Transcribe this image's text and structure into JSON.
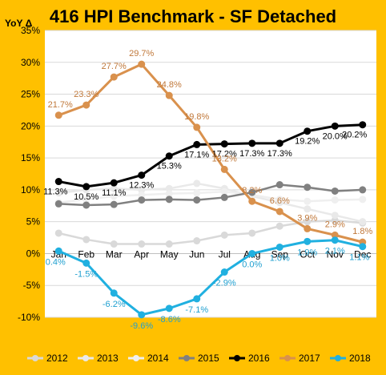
{
  "title": "416 HPI Benchmark - SF Detached",
  "y_axis_label": "YoY Δ",
  "chart_data": {
    "type": "line",
    "title": "416 HPI Benchmark - SF Detached",
    "ylabel": "YoY Δ",
    "ylim": [
      -10,
      35
    ],
    "y_ticks": [
      "-10%",
      "-5%",
      "0%",
      "5%",
      "10%",
      "15%",
      "20%",
      "25%",
      "30%",
      "35%"
    ],
    "categories": [
      "Jan",
      "Feb",
      "Mar",
      "Apr",
      "May",
      "Jun",
      "Jul",
      "Aug",
      "Sep",
      "Oct",
      "Nov",
      "Dec"
    ],
    "grid": true,
    "legend_position": "bottom",
    "series": [
      {
        "name": "2012",
        "color": "#d9d9d9",
        "values": [
          3.2,
          2.2,
          1.5,
          1.5,
          1.5,
          2.0,
          2.9,
          3.2,
          4.3,
          5.0,
          5.2,
          4.8
        ],
        "labels": []
      },
      {
        "name": "2013",
        "color": "#e9e9e9",
        "values": [
          9.5,
          10.0,
          10.2,
          10.0,
          10.2,
          11.0,
          10.2,
          9.0,
          8.0,
          7.0,
          6.0,
          5.0
        ],
        "labels": []
      },
      {
        "name": "2014",
        "color": "#efefef",
        "values": [
          8.0,
          8.5,
          9.0,
          9.2,
          9.4,
          9.5,
          9.7,
          9.2,
          8.5,
          8.2,
          8.4,
          8.5
        ],
        "labels": []
      },
      {
        "name": "2015",
        "color": "#808080",
        "values": [
          7.8,
          7.6,
          7.7,
          8.4,
          8.5,
          8.4,
          8.8,
          9.6,
          10.8,
          10.4,
          9.8,
          10.0
        ],
        "labels": []
      },
      {
        "name": "2016",
        "color": "#000000",
        "values": [
          11.3,
          10.5,
          11.1,
          12.3,
          15.3,
          17.1,
          17.2,
          17.3,
          17.3,
          19.2,
          20.0,
          20.2
        ],
        "labels": [
          "11.3%",
          "10.5%",
          "11.1%",
          "12.3%",
          "15.3%",
          "17.1%",
          "17.2%",
          "17.3%",
          "17.3%",
          "19.2%",
          "20.0%",
          "20.2%"
        ]
      },
      {
        "name": "2017",
        "color": "#d9914d",
        "values": [
          21.7,
          23.3,
          27.7,
          29.7,
          24.8,
          19.8,
          13.2,
          8.2,
          6.6,
          3.9,
          2.9,
          1.8
        ],
        "labels": [
          "21.7%",
          "23.3%",
          "27.7%",
          "29.7%",
          "24.8%",
          "19.8%",
          "13.2%",
          "8.2%",
          "6.6%",
          "3.9%",
          "2.9%",
          "1.8%"
        ]
      },
      {
        "name": "2018",
        "color": "#20b0e0",
        "values": [
          0.4,
          -1.5,
          -6.2,
          -9.6,
          -8.6,
          -7.1,
          -2.9,
          0.0,
          1.0,
          1.9,
          2.1,
          1.1
        ],
        "labels": [
          "0.4%",
          "-1.5%",
          "-6.2%",
          "-9.6%",
          "-8.6%",
          "-7.1%",
          "-2.9%",
          "0.0%",
          "1.0%",
          "1.9%",
          "2.1%",
          "1.1%"
        ]
      }
    ]
  }
}
